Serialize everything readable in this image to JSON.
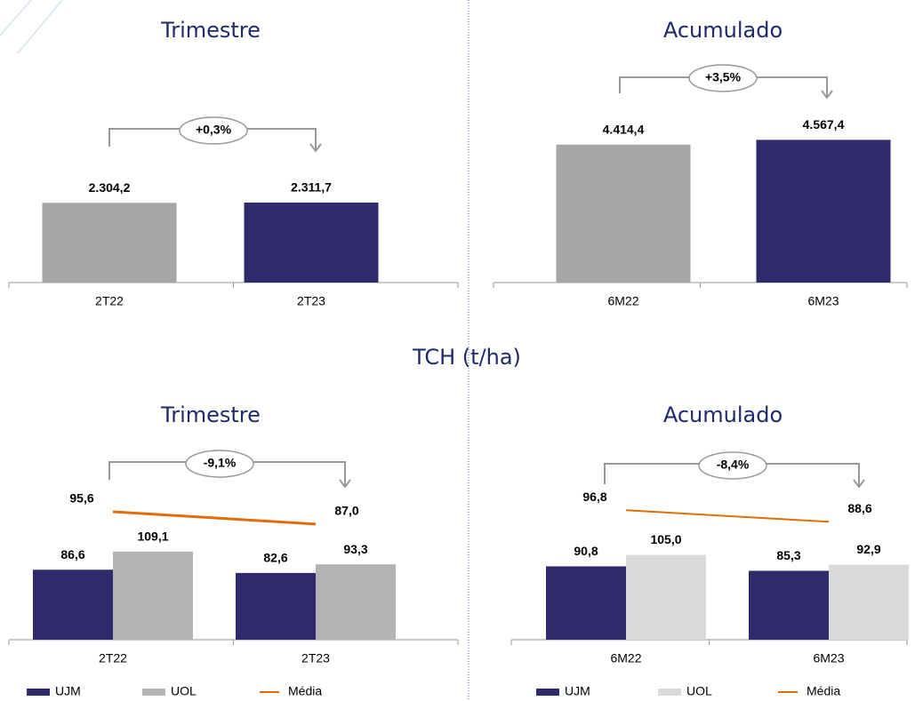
{
  "heading": "TCH (t/ha)",
  "chart_data": [
    {
      "type": "bar",
      "title": "Trimestre",
      "annotation": "+0,3%",
      "categories": [
        "2T22",
        "2T23"
      ],
      "values": [
        2304.2,
        2311.7
      ],
      "value_labels": [
        "2.304,2",
        "2.311,7"
      ],
      "colors": [
        "#a6a6a6",
        "#2e2a6b"
      ],
      "ylim": [
        0,
        5600
      ]
    },
    {
      "type": "bar",
      "title": "Acumulado",
      "annotation": "+3,5%",
      "categories": [
        "6M22",
        "6M23"
      ],
      "values": [
        4414.4,
        4567.4
      ],
      "value_labels": [
        "4.414,4",
        "4.567,4"
      ],
      "colors": [
        "#a6a6a6",
        "#2e2a6b"
      ],
      "ylim": [
        0,
        6200
      ]
    },
    {
      "type": "bar",
      "title": "Trimestre",
      "annotation": "-9,1%",
      "categories": [
        "2T22",
        "2T23"
      ],
      "ylim": [
        0,
        220
      ],
      "y2lim": [
        7,
        130
      ],
      "series": [
        {
          "name": "UJM",
          "color": "#2e2a6b",
          "values": [
            86.6,
            82.6
          ],
          "value_labels": [
            "86,6",
            "82,6"
          ]
        },
        {
          "name": "UOL",
          "color": "#b3b3b3",
          "values": [
            109.1,
            93.3
          ],
          "value_labels": [
            "109,1",
            "93,3"
          ]
        },
        {
          "name": "Média",
          "color": "#e36c0a",
          "type": "line",
          "axis": "y2",
          "values": [
            95.6,
            87.0
          ],
          "value_labels": [
            "95,6",
            "87,0"
          ]
        }
      ]
    },
    {
      "type": "bar",
      "title": "Acumulado",
      "annotation": "-8,4%",
      "categories": [
        "6M22",
        "6M23"
      ],
      "ylim": [
        0,
        220
      ],
      "y2lim": [
        5,
        131
      ],
      "series": [
        {
          "name": "UJM",
          "color": "#2e2a6b",
          "values": [
            90.8,
            85.3
          ],
          "value_labels": [
            "90,8",
            "85,3"
          ]
        },
        {
          "name": "UOL",
          "color": "#d9d9d9",
          "values": [
            105.0,
            92.9
          ],
          "value_labels": [
            "105,0",
            "92,9"
          ]
        },
        {
          "name": "Média",
          "color": "#e36c0a",
          "type": "line",
          "axis": "y2",
          "values": [
            96.8,
            88.6
          ],
          "value_labels": [
            "96,8",
            "88,6"
          ]
        }
      ]
    }
  ]
}
